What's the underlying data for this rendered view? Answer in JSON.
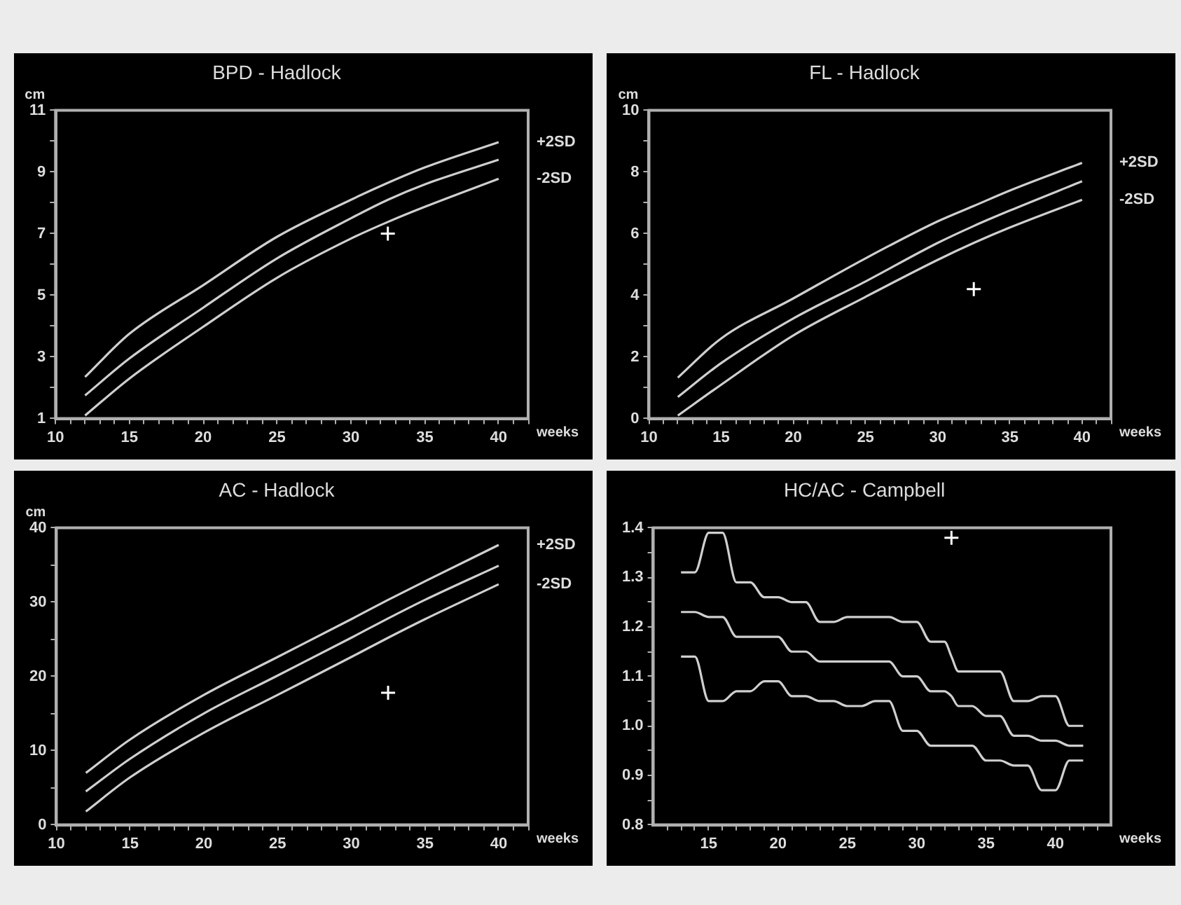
{
  "chart_data": [
    {
      "type": "line",
      "title": "BPD - Hadlock",
      "xlabel": "weeks",
      "ylabel": "cm",
      "marker": "none",
      "line_style": "solid",
      "xlim": [
        10,
        42
      ],
      "ylim": [
        1,
        11
      ],
      "xticks": [
        10,
        {
          "value": 11,
          "label": null
        },
        {
          "value": 12,
          "label": null
        },
        {
          "value": 13,
          "label": null
        },
        {
          "value": 14,
          "label": null
        },
        15,
        {
          "value": 16,
          "label": null
        },
        {
          "value": 17,
          "label": null
        },
        {
          "value": 18,
          "label": null
        },
        {
          "value": 19,
          "label": null
        },
        20,
        {
          "value": 21,
          "label": null
        },
        {
          "value": 22,
          "label": null
        },
        {
          "value": 23,
          "label": null
        },
        {
          "value": 24,
          "label": null
        },
        25,
        {
          "value": 26,
          "label": null
        },
        {
          "value": 27,
          "label": null
        },
        {
          "value": 28,
          "label": null
        },
        {
          "value": 29,
          "label": null
        },
        30,
        {
          "value": 31,
          "label": null
        },
        {
          "value": 32,
          "label": null
        },
        {
          "value": 33,
          "label": null
        },
        {
          "value": 34,
          "label": null
        },
        35,
        {
          "value": 36,
          "label": null
        },
        {
          "value": 37,
          "label": null
        },
        {
          "value": 38,
          "label": null
        },
        {
          "value": 39,
          "label": null
        },
        40,
        {
          "value": 41,
          "label": null
        },
        {
          "value": 42,
          "label": null
        }
      ],
      "yticks": [
        1,
        {
          "value": 2,
          "label": null
        },
        3,
        {
          "value": 4,
          "label": null
        },
        5,
        {
          "value": 6,
          "label": null
        },
        7,
        {
          "value": 8,
          "label": null
        },
        9,
        {
          "value": 10,
          "label": null
        },
        11
      ],
      "x": [
        12,
        15,
        20,
        25,
        30,
        32.5,
        35,
        40
      ],
      "series": [
        {
          "name": "+2SD",
          "color": "#cfcfcf",
          "values": [
            2.35,
            3.75,
            5.33,
            6.9,
            8.1,
            8.65,
            9.15,
            9.97
          ]
        },
        {
          "color": "#cfcfcf",
          "values": [
            1.75,
            2.95,
            4.6,
            6.2,
            7.5,
            8.1,
            8.6,
            9.4
          ]
        },
        {
          "name": "-2SD",
          "color": "#cfcfcf",
          "values": [
            1.1,
            2.3,
            3.98,
            5.57,
            6.84,
            7.38,
            7.87,
            8.78
          ]
        },
        {
          "type": "scatter",
          "marker": "cross",
          "color": "#ffffff",
          "values": [
            null,
            null,
            null,
            null,
            null,
            7.0,
            null,
            null
          ]
        }
      ]
    },
    {
      "type": "line",
      "title": "FL - Hadlock",
      "xlabel": "weeks",
      "ylabel": "cm",
      "marker": "none",
      "line_style": "solid",
      "xlim": [
        10,
        42
      ],
      "ylim": [
        0,
        10
      ],
      "xticks": [
        10,
        {
          "value": 11,
          "label": null
        },
        {
          "value": 12,
          "label": null
        },
        {
          "value": 13,
          "label": null
        },
        {
          "value": 14,
          "label": null
        },
        15,
        {
          "value": 16,
          "label": null
        },
        {
          "value": 17,
          "label": null
        },
        {
          "value": 18,
          "label": null
        },
        {
          "value": 19,
          "label": null
        },
        20,
        {
          "value": 21,
          "label": null
        },
        {
          "value": 22,
          "label": null
        },
        {
          "value": 23,
          "label": null
        },
        {
          "value": 24,
          "label": null
        },
        25,
        {
          "value": 26,
          "label": null
        },
        {
          "value": 27,
          "label": null
        },
        {
          "value": 28,
          "label": null
        },
        {
          "value": 29,
          "label": null
        },
        30,
        {
          "value": 31,
          "label": null
        },
        {
          "value": 32,
          "label": null
        },
        {
          "value": 33,
          "label": null
        },
        {
          "value": 34,
          "label": null
        },
        35,
        {
          "value": 36,
          "label": null
        },
        {
          "value": 37,
          "label": null
        },
        {
          "value": 38,
          "label": null
        },
        {
          "value": 39,
          "label": null
        },
        40,
        {
          "value": 41,
          "label": null
        },
        {
          "value": 42,
          "label": null
        }
      ],
      "yticks": [
        0,
        {
          "value": 1,
          "label": null
        },
        2,
        {
          "value": 3,
          "label": null
        },
        4,
        {
          "value": 5,
          "label": null
        },
        6,
        {
          "value": 7,
          "label": null
        },
        8,
        {
          "value": 9,
          "label": null
        },
        10
      ],
      "x": [
        12,
        15,
        20,
        25,
        30,
        32.5,
        35,
        40
      ],
      "series": [
        {
          "name": "+2SD",
          "color": "#cfcfcf",
          "values": [
            1.33,
            2.6,
            3.9,
            5.2,
            6.4,
            6.9,
            7.4,
            8.3
          ]
        },
        {
          "color": "#cfcfcf",
          "values": [
            0.7,
            1.8,
            3.25,
            4.45,
            5.7,
            6.25,
            6.75,
            7.7
          ]
        },
        {
          "name": "-2SD",
          "color": "#cfcfcf",
          "values": [
            0.1,
            1.1,
            2.7,
            3.95,
            5.15,
            5.7,
            6.2,
            7.1
          ]
        },
        {
          "type": "scatter",
          "marker": "cross",
          "color": "#ffffff",
          "values": [
            null,
            null,
            null,
            null,
            null,
            4.2,
            null,
            null
          ]
        }
      ]
    },
    {
      "type": "line",
      "title": "AC - Hadlock",
      "xlabel": "weeks",
      "ylabel": "cm",
      "marker": "none",
      "line_style": "solid",
      "xlim": [
        10,
        42
      ],
      "ylim": [
        0,
        40
      ],
      "xticks": [
        10,
        {
          "value": 11,
          "label": null
        },
        {
          "value": 12,
          "label": null
        },
        {
          "value": 13,
          "label": null
        },
        {
          "value": 14,
          "label": null
        },
        15,
        {
          "value": 16,
          "label": null
        },
        {
          "value": 17,
          "label": null
        },
        {
          "value": 18,
          "label": null
        },
        {
          "value": 19,
          "label": null
        },
        20,
        {
          "value": 21,
          "label": null
        },
        {
          "value": 22,
          "label": null
        },
        {
          "value": 23,
          "label": null
        },
        {
          "value": 24,
          "label": null
        },
        25,
        {
          "value": 26,
          "label": null
        },
        {
          "value": 27,
          "label": null
        },
        {
          "value": 28,
          "label": null
        },
        {
          "value": 29,
          "label": null
        },
        30,
        {
          "value": 31,
          "label": null
        },
        {
          "value": 32,
          "label": null
        },
        {
          "value": 33,
          "label": null
        },
        {
          "value": 34,
          "label": null
        },
        35,
        {
          "value": 36,
          "label": null
        },
        {
          "value": 37,
          "label": null
        },
        {
          "value": 38,
          "label": null
        },
        {
          "value": 39,
          "label": null
        },
        40,
        {
          "value": 41,
          "label": null
        },
        {
          "value": 42,
          "label": null
        }
      ],
      "yticks": [
        0,
        {
          "value": 5,
          "label": null
        },
        10,
        {
          "value": 15,
          "label": null
        },
        20,
        {
          "value": 25,
          "label": null
        },
        30,
        {
          "value": 35,
          "label": null
        },
        40
      ],
      "x": [
        12,
        15,
        20,
        25,
        30,
        32.5,
        35,
        40
      ],
      "series": [
        {
          "name": "+2SD",
          "color": "#cfcfcf",
          "values": [
            7.0,
            11.5,
            17.5,
            22.6,
            27.7,
            30.3,
            32.8,
            37.7
          ]
        },
        {
          "color": "#cfcfcf",
          "values": [
            4.5,
            8.9,
            15.0,
            20.1,
            25.2,
            27.8,
            30.3,
            34.9
          ]
        },
        {
          "name": "-2SD",
          "color": "#cfcfcf",
          "values": [
            1.8,
            6.4,
            12.4,
            17.5,
            22.6,
            25.2,
            27.7,
            32.4
          ]
        },
        {
          "type": "scatter",
          "marker": "cross",
          "color": "#ffffff",
          "values": [
            null,
            null,
            null,
            null,
            null,
            17.8,
            null,
            null
          ]
        }
      ]
    },
    {
      "type": "line",
      "title": "HC/AC - Campbell",
      "xlabel": "weeks",
      "marker": "none",
      "line_style": "solid",
      "xlim": [
        11,
        44
      ],
      "ylim": [
        0.8,
        1.4
      ],
      "xticks": [
        {
          "value": 12,
          "label": null
        },
        {
          "value": 13,
          "label": null
        },
        {
          "value": 14,
          "label": null
        },
        15,
        {
          "value": 16,
          "label": null
        },
        {
          "value": 17,
          "label": null
        },
        {
          "value": 18,
          "label": null
        },
        {
          "value": 19,
          "label": null
        },
        20,
        {
          "value": 21,
          "label": null
        },
        {
          "value": 22,
          "label": null
        },
        {
          "value": 23,
          "label": null
        },
        {
          "value": 24,
          "label": null
        },
        25,
        {
          "value": 26,
          "label": null
        },
        {
          "value": 27,
          "label": null
        },
        {
          "value": 28,
          "label": null
        },
        {
          "value": 29,
          "label": null
        },
        30,
        {
          "value": 31,
          "label": null
        },
        {
          "value": 32,
          "label": null
        },
        {
          "value": 33,
          "label": null
        },
        {
          "value": 34,
          "label": null
        },
        35,
        {
          "value": 36,
          "label": null
        },
        {
          "value": 37,
          "label": null
        },
        {
          "value": 38,
          "label": null
        },
        {
          "value": 39,
          "label": null
        },
        40,
        {
          "value": 41,
          "label": null
        },
        {
          "value": 42,
          "label": null
        },
        {
          "value": 43,
          "label": null
        }
      ],
      "yticks": [
        0.8,
        {
          "value": 0.85,
          "label": null
        },
        0.9,
        {
          "value": 0.95,
          "label": null
        },
        {
          "value": 1.0,
          "label": "1.0"
        },
        {
          "value": 1.05,
          "label": null
        },
        1.1,
        {
          "value": 1.15,
          "label": null
        },
        1.2,
        {
          "value": 1.25,
          "label": null
        },
        1.3,
        {
          "value": 1.35,
          "label": null
        },
        1.4
      ],
      "x": [
        13,
        14,
        15,
        16,
        17,
        18,
        19,
        20,
        21,
        22,
        23,
        24,
        25,
        26,
        27,
        28,
        29,
        30,
        31,
        32,
        32.5,
        33,
        34,
        35,
        36,
        37,
        38,
        39,
        40,
        41,
        42
      ],
      "series": [
        {
          "color": "#cfcfcf",
          "values": [
            1.31,
            1.31,
            1.39,
            1.39,
            1.29,
            1.29,
            1.26,
            1.26,
            1.25,
            1.25,
            1.21,
            1.21,
            1.22,
            1.22,
            1.22,
            1.22,
            1.21,
            1.21,
            1.17,
            1.17,
            1.14,
            1.11,
            1.11,
            1.11,
            1.11,
            1.05,
            1.05,
            1.06,
            1.06,
            1.0,
            1.0
          ]
        },
        {
          "color": "#cfcfcf",
          "values": [
            1.23,
            1.23,
            1.22,
            1.22,
            1.18,
            1.18,
            1.18,
            1.18,
            1.15,
            1.15,
            1.13,
            1.13,
            1.13,
            1.13,
            1.13,
            1.13,
            1.1,
            1.1,
            1.07,
            1.07,
            1.06,
            1.04,
            1.04,
            1.02,
            1.02,
            0.98,
            0.98,
            0.97,
            0.97,
            0.96,
            0.96
          ]
        },
        {
          "color": "#cfcfcf",
          "values": [
            1.14,
            1.14,
            1.05,
            1.05,
            1.07,
            1.07,
            1.09,
            1.09,
            1.06,
            1.06,
            1.05,
            1.05,
            1.04,
            1.04,
            1.05,
            1.05,
            0.99,
            0.99,
            0.96,
            0.96,
            0.96,
            0.96,
            0.96,
            0.93,
            0.93,
            0.92,
            0.92,
            0.87,
            0.87,
            0.93,
            0.93
          ]
        },
        {
          "type": "scatter",
          "marker": "cross",
          "color": "#ffffff",
          "values": [
            null,
            null,
            null,
            null,
            null,
            null,
            null,
            null,
            null,
            null,
            null,
            null,
            null,
            null,
            null,
            null,
            null,
            null,
            null,
            null,
            1.38,
            null,
            null,
            null,
            null,
            null,
            null,
            null,
            null,
            null,
            null
          ]
        }
      ]
    }
  ]
}
